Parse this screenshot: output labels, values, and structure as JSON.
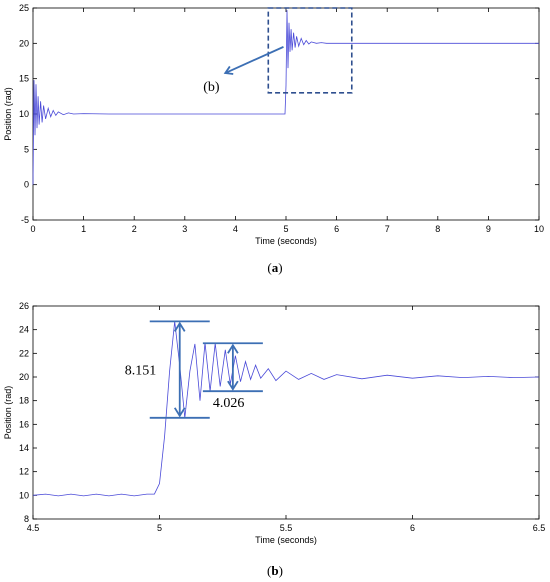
{
  "figure": {
    "caption_a": {
      "open": "(",
      "letter": "a",
      "close": ")"
    },
    "caption_b": {
      "open": "(",
      "letter": "b",
      "close": ")"
    }
  },
  "chart_data": [
    {
      "type": "line",
      "panel": "a",
      "xlabel": "Time (seconds)",
      "ylabel": "Position (rad)",
      "xlim": [
        0,
        10
      ],
      "ylim": [
        -5,
        25
      ],
      "xticks": [
        "0",
        "1",
        "2",
        "3",
        "4",
        "5",
        "6",
        "7",
        "8",
        "9",
        "10"
      ],
      "yticks": [
        "-5",
        "0",
        "5",
        "10",
        "15",
        "20",
        "25"
      ],
      "grid": false,
      "series_color": "#4a4ad8",
      "annotation_label": "(b)",
      "zoom_box": {
        "x": [
          4.65,
          6.3
        ],
        "y": [
          13.0,
          25.0
        ]
      },
      "arrow": {
        "from": [
          4.95,
          19.5
        ],
        "to": [
          3.8,
          15.8
        ]
      },
      "series": [
        {
          "x": [
            0.0,
            0.02,
            0.04,
            0.06,
            0.08,
            0.1,
            0.12,
            0.15,
            0.18,
            0.21,
            0.25,
            0.3,
            0.35,
            0.4,
            0.45,
            0.5,
            0.6,
            0.7,
            0.8,
            1.0,
            1.5,
            2.0,
            3.0,
            4.0,
            4.98,
            5.0,
            5.02,
            5.04,
            5.06,
            5.08,
            5.1,
            5.12,
            5.15,
            5.18,
            5.21,
            5.25,
            5.3,
            5.35,
            5.4,
            5.45,
            5.5,
            5.6,
            5.7,
            5.8,
            6.0,
            6.5,
            7.0,
            8.0,
            9.0,
            10.0
          ],
          "y": [
            0,
            14.8,
            7.0,
            14.2,
            8.0,
            12.5,
            8.5,
            11.8,
            8.8,
            11.2,
            9.3,
            10.8,
            9.6,
            10.5,
            9.8,
            10.3,
            9.9,
            10.15,
            10.0,
            10.05,
            10.0,
            10.0,
            10.0,
            10.0,
            10.0,
            14.0,
            24.7,
            16.5,
            22.9,
            18.8,
            22.0,
            19.0,
            21.5,
            19.4,
            21.0,
            19.6,
            20.7,
            19.8,
            20.4,
            19.9,
            20.2,
            20.0,
            20.1,
            20.0,
            20.0,
            20.0,
            20.0,
            20.0,
            20.0,
            20.0
          ]
        }
      ]
    },
    {
      "type": "line",
      "panel": "b",
      "xlabel": "Time (seconds)",
      "ylabel": "Position (rad)",
      "xlim": [
        4.5,
        6.5
      ],
      "ylim": [
        8,
        26
      ],
      "xticks": [
        "4.5",
        "5",
        "5.5",
        "6",
        "6.5"
      ],
      "yticks": [
        "8",
        "10",
        "12",
        "14",
        "16",
        "18",
        "20",
        "22",
        "24",
        "26"
      ],
      "grid": false,
      "series_color": "#4a4ad8",
      "annotations": [
        {
          "text": "8.151",
          "top": 24.7,
          "bottom": 16.55,
          "x": 5.08
        },
        {
          "text": "4.026",
          "top": 22.85,
          "bottom": 18.8,
          "x": 5.29
        }
      ],
      "series": [
        {
          "x": [
            4.5,
            4.55,
            4.6,
            4.65,
            4.7,
            4.75,
            4.8,
            4.85,
            4.9,
            4.95,
            4.98,
            5.0,
            5.02,
            5.04,
            5.06,
            5.08,
            5.1,
            5.12,
            5.14,
            5.16,
            5.18,
            5.2,
            5.22,
            5.24,
            5.26,
            5.28,
            5.3,
            5.32,
            5.34,
            5.36,
            5.38,
            5.4,
            5.43,
            5.46,
            5.5,
            5.55,
            5.6,
            5.65,
            5.7,
            5.8,
            5.9,
            6.0,
            6.1,
            6.2,
            6.3,
            6.4,
            6.5
          ],
          "y": [
            10.0,
            10.1,
            9.95,
            10.1,
            9.95,
            10.1,
            9.95,
            10.1,
            9.95,
            10.1,
            10.1,
            11.0,
            15.0,
            20.5,
            24.7,
            21.0,
            16.55,
            20.5,
            22.8,
            18.0,
            22.9,
            18.8,
            22.85,
            19.2,
            22.3,
            19.4,
            21.8,
            19.6,
            21.3,
            19.8,
            21.0,
            19.9,
            20.7,
            19.7,
            20.5,
            19.8,
            20.3,
            19.8,
            20.2,
            19.85,
            20.15,
            19.9,
            20.1,
            19.95,
            20.05,
            19.95,
            20.0
          ]
        }
      ]
    }
  ]
}
